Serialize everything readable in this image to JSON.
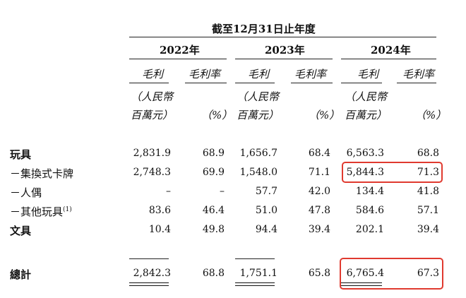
{
  "header": {
    "period": "截至12月31日止年度",
    "years": [
      "2022年",
      "2023年",
      "2024年"
    ],
    "col_gross_profit": "毛利",
    "col_margin": "毛利率",
    "unit_line1": "（人民幣",
    "unit_line2": "百萬元）",
    "pct_unit": "（%）"
  },
  "rows": [
    {
      "label": "玩具",
      "bold": true,
      "values": [
        "2,831.9",
        "68.9",
        "1,656.7",
        "68.4",
        "6,563.3",
        "68.8"
      ]
    },
    {
      "label": "－集換式卡牌",
      "bold": false,
      "values": [
        "2,748.3",
        "69.9",
        "1,548.0",
        "71.1",
        "5,844.3",
        "71.3"
      ]
    },
    {
      "label": "－人偶",
      "bold": false,
      "values": [
        "–",
        "–",
        "57.7",
        "42.0",
        "134.4",
        "41.8"
      ]
    },
    {
      "label": "－其他玩具",
      "footnote": "(1)",
      "bold": false,
      "values": [
        "83.6",
        "46.4",
        "51.0",
        "47.8",
        "584.6",
        "57.1"
      ]
    },
    {
      "label": "文具",
      "bold": true,
      "values": [
        "10.4",
        "49.8",
        "94.4",
        "39.4",
        "202.1",
        "39.4"
      ]
    }
  ],
  "total": {
    "label": "總計",
    "values": [
      "2,842.3",
      "68.8",
      "1,751.1",
      "65.8",
      "6,765.4",
      "67.3"
    ]
  },
  "highlight_color": "#e03a2f"
}
